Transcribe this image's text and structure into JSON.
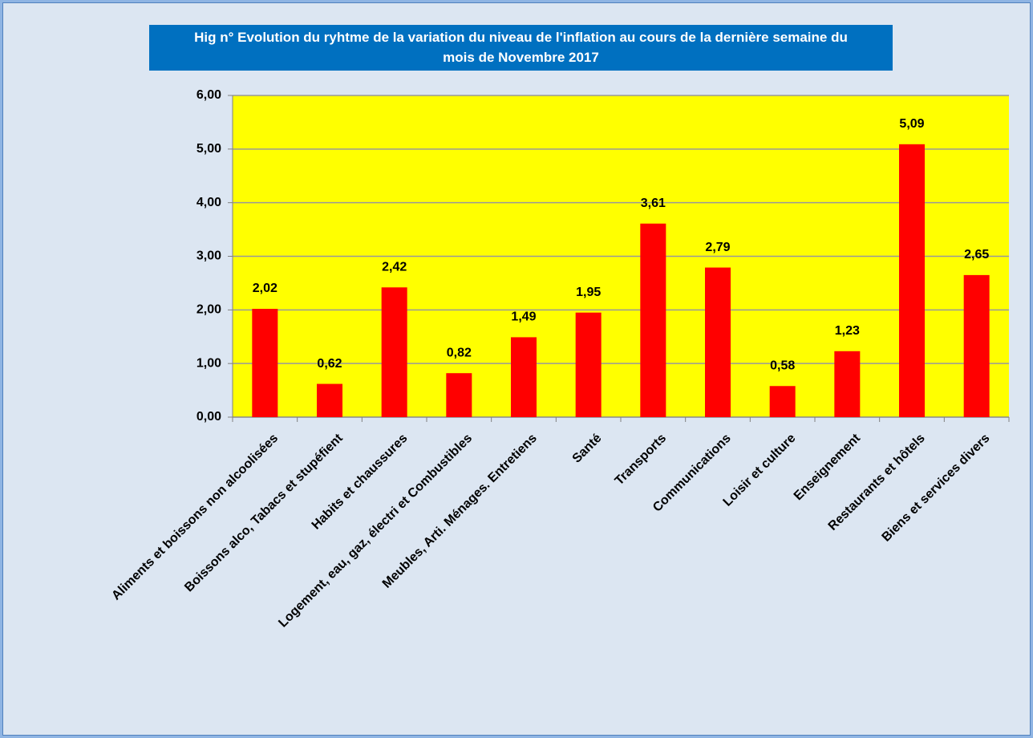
{
  "chart_data": {
    "type": "bar",
    "title": "Hig n° Evolution du ryhtme de la variation du niveau de l'inflation au cours de la dernière semaine du mois de Novembre 2017",
    "categories": [
      "Aliments et boissons non alcoolisées",
      "Boissons alco, Tabacs et stupéfient",
      "Habits et chaussures",
      "Logement, eau, gaz, électri et Combustibles",
      "Meubles, Arti. Ménages. Entretiens",
      "Santé",
      "Transports",
      "Communications",
      "Loisir et culture",
      "Enseignement",
      "Restaurants et hôtels",
      "Biens et services divers"
    ],
    "values": [
      2.02,
      0.62,
      2.42,
      0.82,
      1.49,
      1.95,
      3.61,
      2.79,
      0.58,
      1.23,
      5.09,
      2.65
    ],
    "value_labels": [
      "2,02",
      "0,62",
      "2,42",
      "0,82",
      "1,49",
      "1,95",
      "3,61",
      "2,79",
      "0,58",
      "1,23",
      "5,09",
      "2,65"
    ],
    "color": "#ff0000",
    "ylim": [
      0,
      6
    ],
    "yticks": [
      {
        "value": 0,
        "label": "0,00"
      },
      {
        "value": 1,
        "label": "1,00"
      },
      {
        "value": 2,
        "label": "2,00"
      },
      {
        "value": 3,
        "label": "3,00"
      },
      {
        "value": 4,
        "label": "4,00"
      },
      {
        "value": 5,
        "label": "5,00"
      },
      {
        "value": 6,
        "label": "6,00"
      }
    ],
    "grid": true
  }
}
